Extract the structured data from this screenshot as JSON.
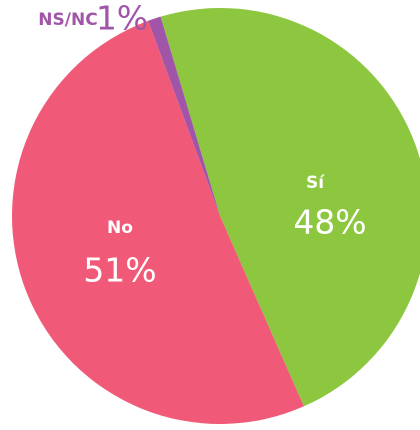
{
  "chart_data": {
    "type": "pie",
    "categories": [
      "Sí",
      "No",
      "NS/NC"
    ],
    "values": [
      48,
      51,
      1
    ],
    "value_labels": [
      "48%",
      "51%",
      "1%"
    ],
    "colors": [
      "#8dc63f",
      "#f05a78",
      "#a155a8"
    ]
  }
}
